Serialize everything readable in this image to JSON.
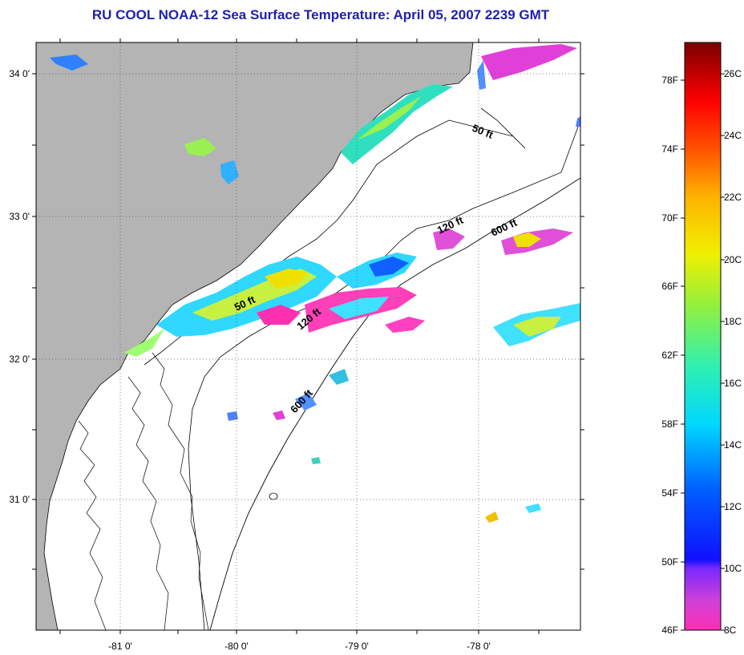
{
  "title": "RU COOL  NOAA-12  Sea Surface Temperature:  April 05, 2007 2239 GMT",
  "map": {
    "lon_range": [
      -81.5,
      -77.2
    ],
    "lat_range": [
      30.2,
      34.2
    ],
    "lat_labels": [
      "34 0'",
      "33 0'",
      "32 0'",
      "31 0'"
    ],
    "lon_labels": [
      "-81 0'",
      "-80 0'",
      "-79 0'",
      "-78 0'"
    ],
    "depth_labels": [
      {
        "id": "50ft-north",
        "text": "50 ft"
      },
      {
        "id": "120ft-north",
        "text": "120 ft"
      },
      {
        "id": "600ft-north",
        "text": "600 ft"
      },
      {
        "id": "50ft-south",
        "text": "50 ft"
      },
      {
        "id": "120ft-south",
        "text": "120 ft"
      },
      {
        "id": "600ft-south",
        "text": "600 ft"
      }
    ],
    "colors": {
      "land": "#b4b4b4",
      "ocean": "#ffffff",
      "coastline": "#000000",
      "grid": "#555555"
    }
  },
  "colorbar": {
    "f_labels": [
      "78F",
      "74F",
      "70F",
      "66F",
      "62F",
      "58F",
      "54F",
      "50F",
      "46F"
    ],
    "c_labels": [
      "26C",
      "24C",
      "22C",
      "20C",
      "18C",
      "16C",
      "14C",
      "12C",
      "10C",
      "8C"
    ],
    "range_c": [
      8,
      27
    ]
  }
}
